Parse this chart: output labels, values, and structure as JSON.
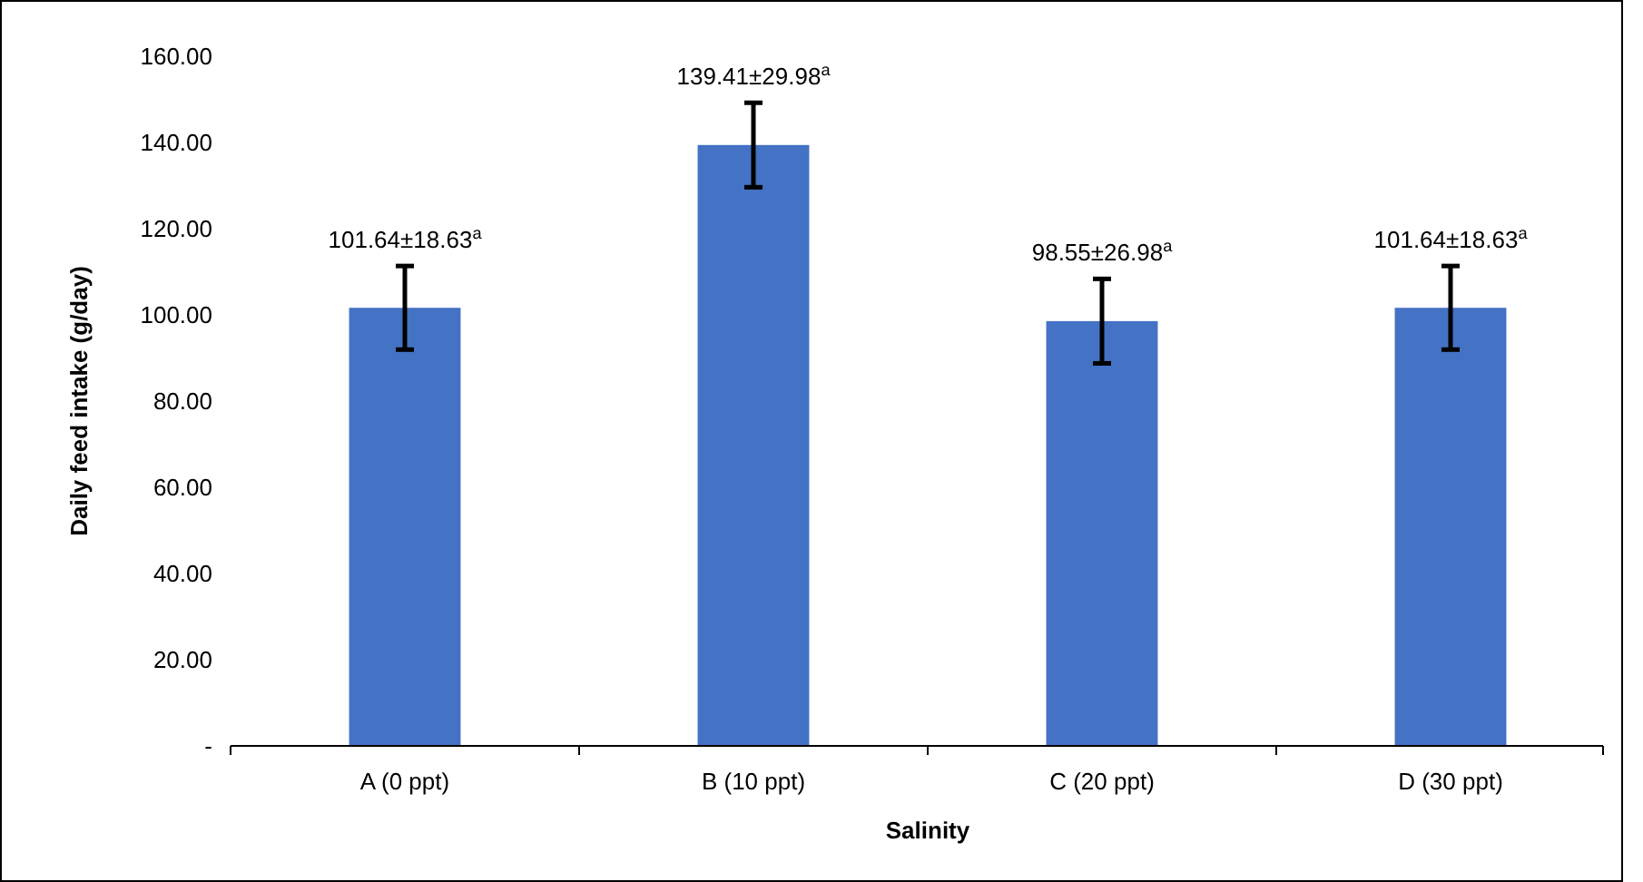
{
  "chart_data": {
    "type": "bar",
    "xlabel": "Salinity",
    "ylabel": "Daily feed intake (g/day)",
    "categories": [
      "A (0 ppt)",
      "B (10 ppt)",
      "C (20 ppt)",
      "D (30 ppt)"
    ],
    "values": [
      101.64,
      139.41,
      98.55,
      101.64
    ],
    "color": "#4472c4",
    "errors": [
      9.7,
      9.8,
      9.8,
      9.7
    ],
    "value_labels": [
      "101.64±18.63$^{a}$",
      "139.41±29.98$^{a}$",
      "98.55±26.98$^{a}$",
      "101.64±18.63$^{a}$"
    ],
    "ylim": [
      0,
      160
    ],
    "yticks": [
      {
        "value": 0,
        "label": "-"
      },
      {
        "value": 20,
        "label": "20.00"
      },
      {
        "value": 40,
        "label": "40.00"
      },
      {
        "value": 60,
        "label": "60.00"
      },
      {
        "value": 80,
        "label": "80.00"
      },
      {
        "value": 100,
        "label": "100.00"
      },
      {
        "value": 120,
        "label": "120.00"
      },
      {
        "value": 140,
        "label": "140.00"
      },
      {
        "value": 160,
        "label": "160.00"
      }
    ],
    "grid": false
  }
}
